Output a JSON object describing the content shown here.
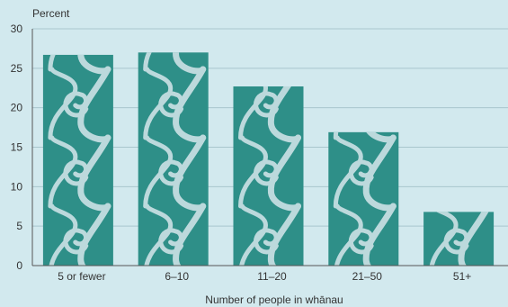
{
  "chart_data": {
    "type": "bar",
    "title": "",
    "ylabel": "Percent",
    "xlabel": "Number of people in whānau",
    "categories": [
      "5 or fewer",
      "6–10",
      "11–20",
      "21–50",
      "51+"
    ],
    "values": [
      26.7,
      27.0,
      22.7,
      16.9,
      6.8
    ],
    "ylim": [
      0,
      30
    ],
    "yticks": [
      0,
      5,
      10,
      15,
      20,
      25,
      30
    ],
    "grid": true,
    "colors": {
      "bar": "#2e8f88",
      "pattern": "#bcd9dc",
      "background": "#d2e9ee",
      "grid": "#a9c6cd"
    }
  }
}
